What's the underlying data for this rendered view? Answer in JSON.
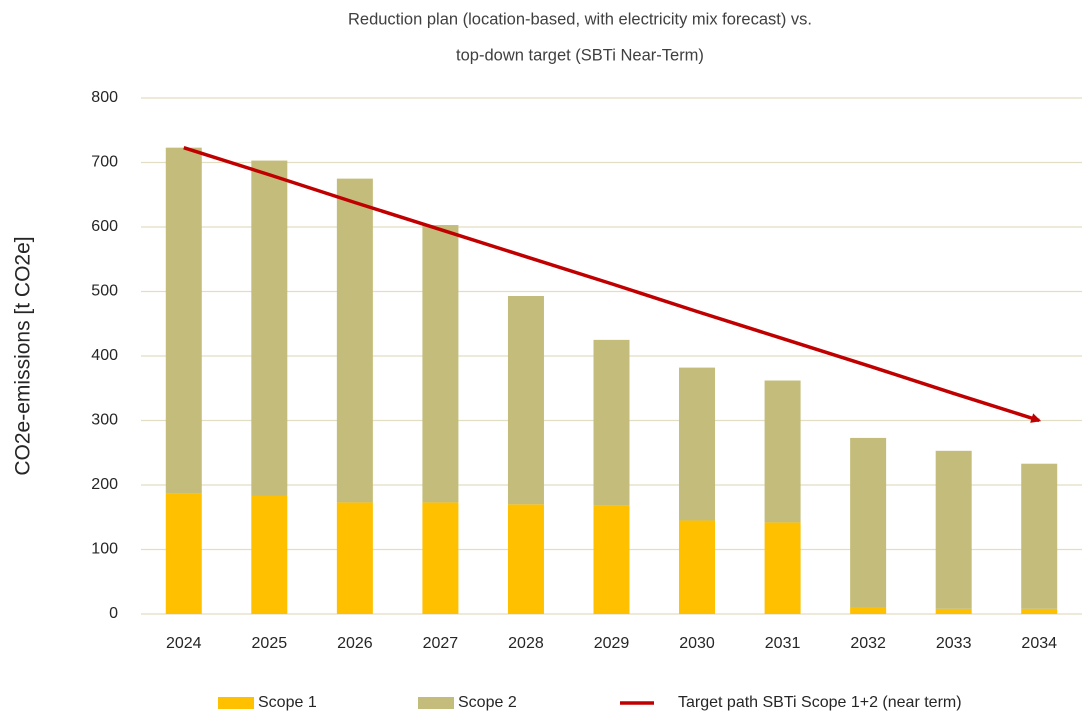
{
  "chart_data": {
    "type": "bar",
    "stacked": true,
    "title": [
      "Reduction plan (location-based, with electricity mix forecast) vs.",
      "top-down target (SBTi Near-Term)"
    ],
    "y_label": "CO2e-emissions [t CO2e]",
    "categories": [
      "2024",
      "2025",
      "2026",
      "2027",
      "2028",
      "2029",
      "2030",
      "2031",
      "2032",
      "2033",
      "2034"
    ],
    "series": [
      {
        "name": "Scope 1",
        "type": "bar",
        "color": "#ffc000",
        "values": [
          187,
          183,
          173,
          173,
          170,
          168,
          145,
          142,
          10,
          8,
          8
        ]
      },
      {
        "name": "Scope 2",
        "type": "bar",
        "color": "#c4bc7b",
        "values": [
          536,
          520,
          502,
          430,
          323,
          257,
          237,
          220,
          263,
          245,
          225
        ]
      },
      {
        "name": "Target path SBTi Scope 1+2 (near term)",
        "type": "line",
        "color": "#c00000",
        "values": [
          723,
          681,
          638,
          596,
          554,
          512,
          469,
          427,
          385,
          342,
          300
        ]
      }
    ],
    "ylim": [
      0,
      800
    ],
    "yticks": [
      0,
      100,
      200,
      300,
      400,
      500,
      600,
      700,
      800
    ],
    "grid": true,
    "legend": "bottom"
  }
}
